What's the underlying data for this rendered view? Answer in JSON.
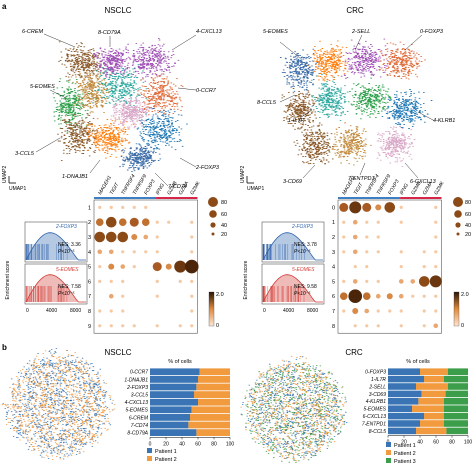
{
  "panel_labels": {
    "a": "a",
    "b": "b"
  },
  "colors": {
    "c0": "#c28a3c",
    "c1": "#3f6fa9",
    "c2": "#2fa8a0",
    "c3": "#8b5a2b",
    "c4": "#e06c3c",
    "c5": "#a052b5",
    "c6": "#2d9f4a",
    "c7": "#d9a7c7",
    "c8": "#1f77b4",
    "c9": "#ff7f0e",
    "patient1": "#3a74b4",
    "patient2": "#f19a3e",
    "patient3": "#3c9d4a",
    "gsea_blue": "#2f63ad",
    "gsea_red": "#d23b34",
    "dot": "#8c4a16",
    "bar_blue": "#3e7fc4",
    "bar_red": "#d7264a"
  },
  "nsclc": {
    "title": "NSCLC",
    "umap_axes": {
      "y": "UMAP2",
      "x": "UMAP1"
    },
    "cluster_labels": [
      "6-CREM",
      "8-CD79A",
      "4-CXCL13",
      "5-EOMES",
      "0-CCR7",
      "3-CCL5",
      "1-DNAJB1",
      "2-FOXP3",
      "7-CD74"
    ],
    "gsea": {
      "ylabel": "Enrichment score",
      "top": {
        "name": "2-FOXP3",
        "nes": "NES: 3.36",
        "p": "P<10⁻⁵"
      },
      "bottom": {
        "name": "5-EOMES",
        "nes": "NES: 7.58",
        "p": "P<10⁻⁵"
      },
      "xticks": [
        "0",
        "4000",
        "8000"
      ]
    },
    "dotplot": {
      "genes": [
        "MAGEH1",
        "TIGIT",
        "TNFRSF4",
        "TNFRSF9",
        "FOXP3",
        "IFNG",
        "GZMB",
        "GZMA",
        "GZMK"
      ],
      "clusters": [
        "1",
        "2",
        "3",
        "4",
        "5",
        "6",
        "7",
        "8",
        "9"
      ],
      "matrix": [
        [
          1,
          1,
          1,
          1,
          1,
          0,
          0,
          0,
          0
        ],
        [
          4,
          6,
          4,
          5,
          4,
          1,
          1,
          0,
          1
        ],
        [
          6,
          6,
          6,
          3,
          2,
          1,
          0,
          0,
          1
        ],
        [
          2,
          2,
          1,
          1,
          1,
          1,
          0,
          0,
          1
        ],
        [
          1,
          3,
          2,
          1,
          0,
          5,
          3,
          7,
          8
        ],
        [
          1,
          1,
          1,
          0,
          0,
          1,
          0,
          1,
          1
        ],
        [
          0,
          2,
          1,
          0,
          0,
          1,
          0,
          0,
          1
        ],
        [
          1,
          1,
          1,
          0,
          0,
          0,
          0,
          0,
          1
        ],
        [
          1,
          1,
          1,
          1,
          0,
          1,
          0,
          1,
          1
        ]
      ]
    },
    "size_legend": [
      "80",
      "60",
      "40",
      "20"
    ],
    "color_legend": [
      "2.0",
      "0"
    ],
    "bars": {
      "title": "% of cells",
      "labels": [
        "0-CCR7",
        "1-DNAJB1",
        "2-FOXP3",
        "3-CCL5",
        "4-CXCL13",
        "5-EOMES",
        "6-CREM",
        "7-CD74",
        "8-CD79A"
      ],
      "patient1_pct": [
        62,
        60,
        58,
        55,
        60,
        52,
        50,
        48,
        58
      ],
      "xticks": [
        "0",
        "20",
        "40",
        "60",
        "80",
        "100"
      ],
      "legend": [
        "Patient 1",
        "Patient 2"
      ]
    }
  },
  "crc": {
    "title": "CRC",
    "umap_axes": {
      "y": "UMAP2",
      "x": "UMAP1"
    },
    "cluster_labels": [
      "5-EOMES",
      "2-SELL",
      "0-FOXP3",
      "8-CCL5",
      "1-IL7R",
      "4-KLRB1",
      "3-CD69",
      "7-ENTPD1",
      "6-CXCL13"
    ],
    "gsea": {
      "ylabel": "Enrichment score",
      "top": {
        "name": "2-FOXP3",
        "nes": "NES: 3.78",
        "p": "P<10⁻⁵"
      },
      "bottom": {
        "name": "5-EOMES",
        "nes": "NES: 9.58",
        "p": "P<10⁻⁵"
      },
      "xticks": [
        "0",
        "4000",
        "8000"
      ]
    },
    "dotplot": {
      "genes": [
        "MAGEH1",
        "TIGIT",
        "TNFRSF4",
        "TNFRSF9",
        "FOXP3",
        "IFNG",
        "GZMB",
        "GZMA",
        "GZMK"
      ],
      "clusters": [
        "0",
        "1",
        "2",
        "3",
        "4",
        "5",
        "6",
        "7",
        "8"
      ],
      "matrix": [
        [
          5,
          7,
          5,
          3,
          6,
          1,
          0,
          0,
          1
        ],
        [
          1,
          2,
          1,
          1,
          0,
          1,
          0,
          0,
          1
        ],
        [
          1,
          2,
          1,
          1,
          0,
          0,
          0,
          0,
          1
        ],
        [
          1,
          2,
          1,
          1,
          0,
          1,
          0,
          1,
          1
        ],
        [
          0,
          1,
          1,
          0,
          0,
          1,
          0,
          1,
          1
        ],
        [
          1,
          2,
          1,
          1,
          0,
          2,
          2,
          6,
          7
        ],
        [
          4,
          8,
          4,
          2,
          3,
          2,
          1,
          1,
          1
        ],
        [
          1,
          3,
          2,
          1,
          1,
          1,
          0,
          1,
          1
        ],
        [
          0,
          1,
          1,
          1,
          0,
          1,
          0,
          1,
          2
        ]
      ]
    },
    "size_legend": [
      "80",
      "60",
      "40",
      "20"
    ],
    "color_legend": [
      "2.0",
      "0"
    ],
    "bars": {
      "title": "% of cells",
      "labels": [
        "0-FOXP3",
        "1-IL7R",
        "2-SELL",
        "3-CD69",
        "4-KLRB1",
        "5-EOMES",
        "6-CXCL13",
        "7-ENTPD1",
        "8-CCL5"
      ],
      "patient1_pct": [
        40,
        45,
        35,
        42,
        38,
        30,
        45,
        40,
        35
      ],
      "patient2_pct": [
        35,
        25,
        40,
        30,
        32,
        40,
        25,
        30,
        38
      ],
      "xticks": [
        "0",
        "20",
        "40",
        "60",
        "80",
        "100"
      ],
      "legend": [
        "Patient 1",
        "Patient 2",
        "Patient 3"
      ]
    }
  }
}
